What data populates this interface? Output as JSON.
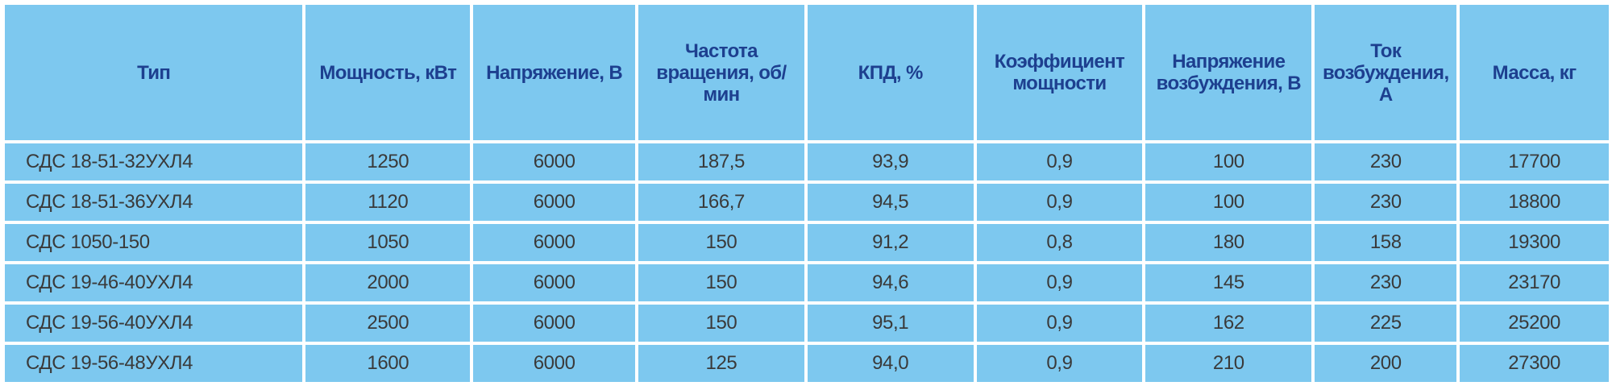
{
  "table": {
    "header": [
      "Тип",
      "Мощность, кВт",
      "Напряжение, В",
      "Частота вращения, об/мин",
      "КПД, %",
      "Коэффициент мощности",
      "Напряжение возбуждения, В",
      "Ток возбуждения, А",
      "Масса, кг"
    ],
    "rows": [
      [
        "СДС 18-51-32УХЛ4",
        "1250",
        "6000",
        "187,5",
        "93,9",
        "0,9",
        "100",
        "230",
        "17700"
      ],
      [
        "СДС 18-51-36УХЛ4",
        "1120",
        "6000",
        "166,7",
        "94,5",
        "0,9",
        "100",
        "230",
        "18800"
      ],
      [
        "СДС 1050-150",
        "1050",
        "6000",
        "150",
        "91,2",
        "0,8",
        "180",
        "158",
        "19300"
      ],
      [
        "СДС 19-46-40УХЛ4",
        "2000",
        "6000",
        "150",
        "94,6",
        "0,9",
        "145",
        "230",
        "23170"
      ],
      [
        "СДС 19-56-40УХЛ4",
        "2500",
        "6000",
        "150",
        "95,1",
        "0,9",
        "162",
        "225",
        "25200"
      ],
      [
        "СДС 19-56-48УХЛ4",
        "1600",
        "6000",
        "125",
        "94,0",
        "0,9",
        "210",
        "200",
        "27300"
      ]
    ]
  }
}
